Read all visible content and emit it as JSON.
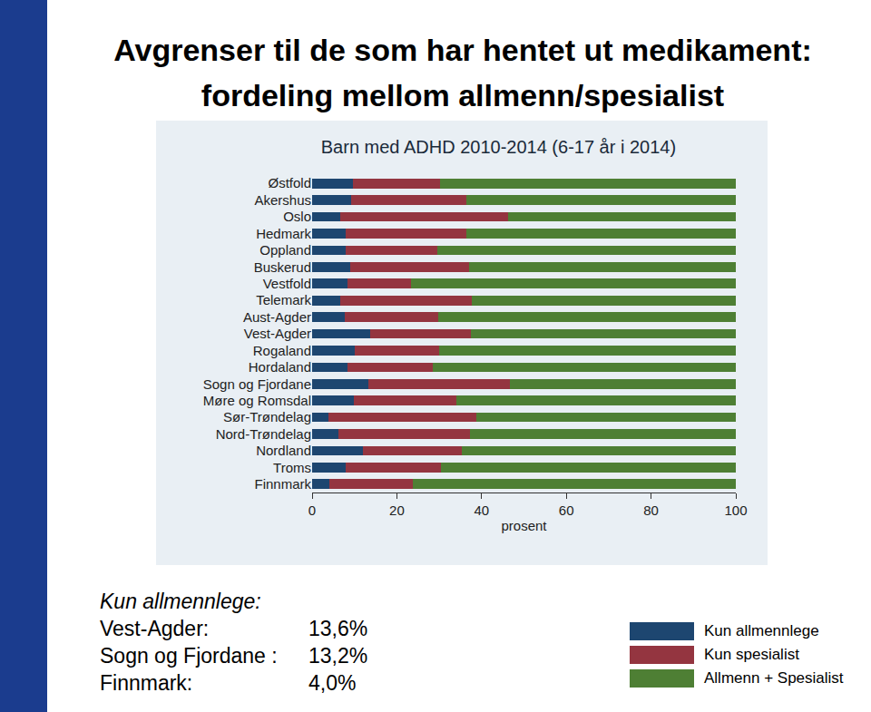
{
  "slide": {
    "title": [
      "Avgrenser til de som har hentet ut medikament:",
      "fordeling mellom allmenn/spesialist"
    ],
    "note": {
      "heading": "Kun allmennlege:",
      "rows": [
        {
          "label": "Vest-Agder:",
          "text": "13,6%"
        },
        {
          "label": "Sogn og Fjordane :",
          "text": "13,2%"
        },
        {
          "label": "Finnmark:",
          "text": "4,0%"
        }
      ]
    }
  },
  "chart_data": {
    "type": "bar",
    "title": "Barn med ADHD 2010-2014 (6-17 år i 2014)",
    "x_label": "prosent",
    "orientation": "horizontal",
    "stacked": true,
    "grid": false,
    "categories": [
      "Østfold",
      "Akershus",
      "Oslo",
      "Hedmark",
      "Oppland",
      "Buskerud",
      "Vestfold",
      "Telemark",
      "Aust-Agder",
      "Vest-Agder",
      "Rogaland",
      "Hordaland",
      "Sogn og Fjordane",
      "Møre og Romsdal",
      "Sør-Trøndelag",
      "Nord-Trøndelag",
      "Nordland",
      "Troms",
      "Finnmark"
    ],
    "series": [
      {
        "name": "Kun allmennlege",
        "color": "#1d4670",
        "values": [
          9.6,
          9.2,
          6.6,
          7.9,
          7.9,
          9.0,
          8.4,
          6.6,
          7.7,
          13.6,
          10.1,
          8.4,
          13.2,
          9.9,
          3.9,
          6.2,
          12.0,
          7.9,
          4.0
        ]
      },
      {
        "name": "Kun spesialist",
        "color": "#943540",
        "values": [
          20.6,
          27.2,
          39.7,
          28.5,
          21.7,
          28.0,
          14.9,
          31.1,
          22.1,
          23.9,
          19.9,
          20.1,
          33.5,
          24.1,
          34.9,
          31.1,
          23.3,
          22.5,
          19.8
        ]
      },
      {
        "name": "Allmenn + Spesialist",
        "color": "#4e7f34",
        "values": [
          69.8,
          63.6,
          53.7,
          63.6,
          70.4,
          63.0,
          76.7,
          62.3,
          70.2,
          62.5,
          70.0,
          71.5,
          53.3,
          66.0,
          61.2,
          62.7,
          64.7,
          69.6,
          76.2
        ]
      }
    ],
    "xlim": [
      0,
      100
    ],
    "xticks": [
      0,
      20,
      40,
      60,
      80,
      100
    ]
  }
}
